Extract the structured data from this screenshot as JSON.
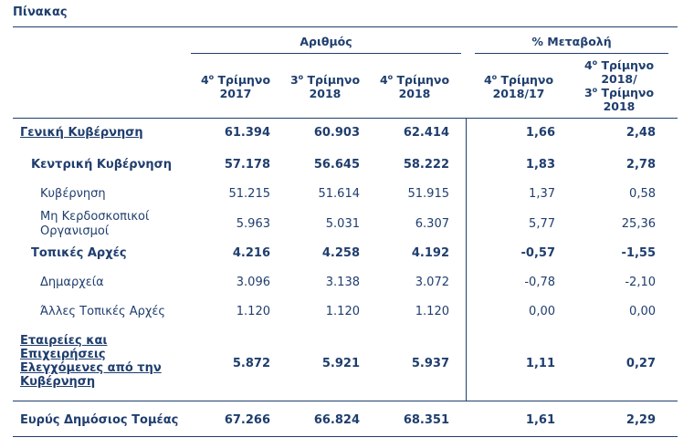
{
  "title": "Πίνακας",
  "groups": {
    "count": "Αριθμός",
    "change": "% Μεταβολή"
  },
  "columns": [
    {
      "pre": "4",
      "sup": "ο",
      "l1": " Τρίμηνο",
      "l2": "2017"
    },
    {
      "pre": "3",
      "sup": "ο",
      "l1": " Τρίμηνο",
      "l2": "2018"
    },
    {
      "pre": "4",
      "sup": "ο",
      "l1": " Τρίμηνο",
      "l2": "2018"
    },
    {
      "pre": "4",
      "sup": "ο",
      "l1": " Τρίμηνο",
      "l2": "2018/17"
    },
    {
      "pre": "4",
      "sup": "ο",
      "l1": " Τρίμηνο",
      "l2": "2018/",
      "pre3": "3",
      "sup3": "ο",
      "l3": " Τρίμηνο",
      "l4": "2018"
    }
  ],
  "rows": [
    {
      "label": "Γενική Κυβέρνηση",
      "values": [
        "61.394",
        "60.903",
        "62.414",
        "1,66",
        "2,48"
      ]
    },
    {
      "label": "Κεντρική Κυβέρνηση",
      "values": [
        "57.178",
        "56.645",
        "58.222",
        "1,83",
        "2,78"
      ]
    },
    {
      "label": "Κυβέρνηση",
      "values": [
        "51.215",
        "51.614",
        "51.915",
        "1,37",
        "0,58"
      ]
    },
    {
      "label_l1": "Μη Κερδοσκοπικοί",
      "label_l2": "Οργανισμοί",
      "values": [
        "5.963",
        "5.031",
        "6.307",
        "5,77",
        "25,36"
      ]
    },
    {
      "label": "Τοπικές Αρχές",
      "values": [
        "4.216",
        "4.258",
        "4.192",
        "-0,57",
        "-1,55"
      ]
    },
    {
      "label": "Δημαρχεία",
      "values": [
        "3.096",
        "3.138",
        "3.072",
        "-0,78",
        "-2,10"
      ]
    },
    {
      "label": "Άλλες Τοπικές Αρχές",
      "values": [
        "1.120",
        "1.120",
        "1.120",
        "0,00",
        "0,00"
      ]
    },
    {
      "label_l1": "Εταιρείες και",
      "label_l2": "Επιχειρήσεις",
      "label_l3": "Ελεγχόμενες από την",
      "label_l4": "Κυβέρνηση",
      "values": [
        "5.872",
        "5.921",
        "5.937",
        "1,11",
        "0,27"
      ]
    },
    {
      "label": "Ευρύς Δημόσιος Τομέας",
      "values": [
        "67.266",
        "66.824",
        "68.351",
        "1,61",
        "2,29"
      ]
    }
  ]
}
